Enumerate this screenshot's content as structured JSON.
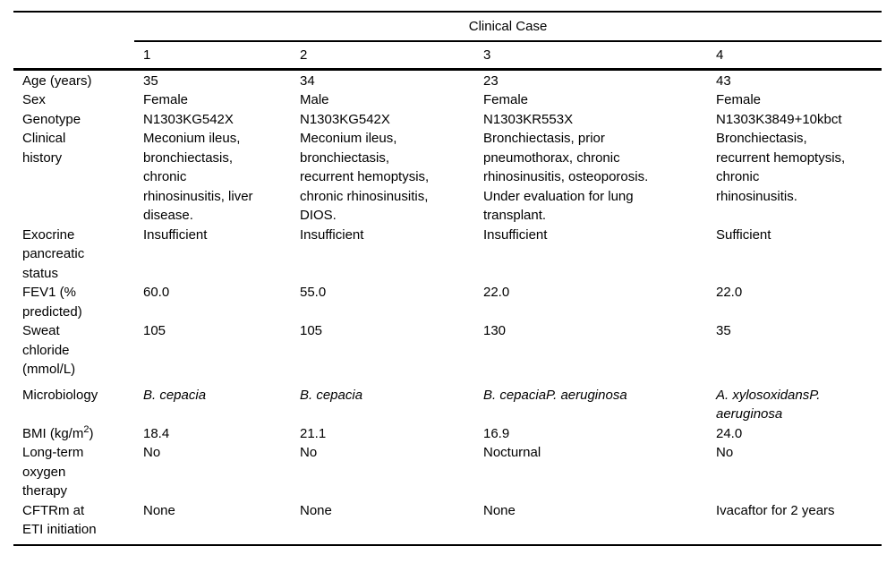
{
  "table": {
    "spanner_title": "Clinical Case",
    "case_numbers": [
      "1",
      "2",
      "3",
      "4"
    ],
    "rows": [
      {
        "label": "Age (years)",
        "cells": [
          "35",
          "34",
          "23",
          "43"
        ]
      },
      {
        "label": "Sex",
        "cells": [
          "Female",
          "Male",
          "Female",
          "Female"
        ]
      },
      {
        "label": "Genotype",
        "cells": [
          "N1303KG542X",
          "N1303KG542X",
          "N1303KR553X",
          "N1303K3849+10kbct"
        ]
      },
      {
        "label": "Clinical\nhistory",
        "cells": [
          "Meconium ileus,\nbronchiectasis,\nchronic\nrhinosinusitis, liver\ndisease.",
          "Meconium ileus,\nbronchiectasis,\nrecurrent hemoptysis,\nchronic rhinosinusitis,\nDIOS.",
          "Bronchiectasis, prior\npneumothorax, chronic\nrhinosinusitis, osteoporosis.\nUnder evaluation for lung\ntransplant.",
          "Bronchiectasis,\nrecurrent hemoptysis,\nchronic\nrhinosinusitis."
        ]
      },
      {
        "label": "Exocrine\npancreatic\nstatus",
        "cells": [
          "Insufficient",
          "Insufficient",
          "Insufficient",
          "Sufficient"
        ]
      },
      {
        "label": "FEV1 (%\npredicted)",
        "cells": [
          "60.0",
          "55.0",
          "22.0",
          "22.0"
        ]
      },
      {
        "label": "Sweat\nchloride\n(mmol/L)",
        "cells": [
          "105",
          "105",
          "130",
          "35"
        ]
      },
      {
        "label": "Microbiology",
        "cells": [
          "B. cepacia",
          "B. cepacia",
          "B. cepaciaP. aeruginosa",
          "A. xylosoxidansP.\naeruginosa"
        ]
      },
      {
        "label_pre": "BMI (kg/m",
        "label_sup": "2",
        "label_post": ")",
        "cells": [
          "18.4",
          "21.1",
          "16.9",
          "24.0"
        ]
      },
      {
        "label": "Long-term\noxygen\ntherapy",
        "cells": [
          "No",
          "No",
          "Nocturnal",
          "No"
        ]
      },
      {
        "label": "CFTRm at\nETI initiation",
        "cells": [
          "None",
          "None",
          "None",
          "Ivacaftor for 2 years"
        ]
      }
    ]
  }
}
